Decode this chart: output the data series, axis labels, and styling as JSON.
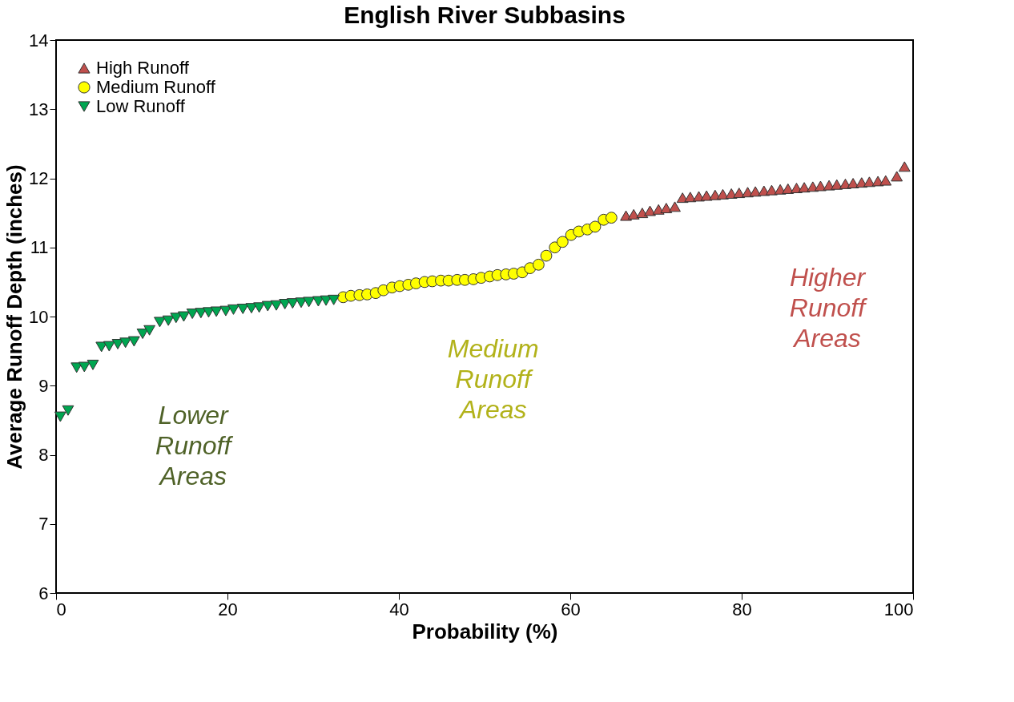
{
  "chart_data": {
    "type": "scatter",
    "title": "English River Subbasins",
    "xlabel": "Probability (%)",
    "ylabel": "Average Runoff Depth (inches)",
    "xlim": [
      0,
      100
    ],
    "xticks": [
      0,
      20,
      40,
      60,
      80,
      100
    ],
    "ylim": [
      6,
      14
    ],
    "yticks": [
      6,
      7,
      8,
      9,
      10,
      11,
      12,
      13,
      14
    ],
    "grid": false,
    "legend": "top left",
    "series": [
      {
        "name": "High Runoff",
        "color": "#c0504d",
        "marker": "triangle",
        "x": [
          66.5,
          67.4,
          68.4,
          69.3,
          70.3,
          71.2,
          72.2,
          73.1,
          74,
          75,
          75.9,
          76.9,
          77.8,
          78.8,
          79.7,
          80.7,
          81.6,
          82.6,
          83.5,
          84.5,
          85.4,
          86.4,
          87.3,
          88.3,
          89.2,
          90.2,
          91.1,
          92.1,
          93,
          94,
          94.9,
          95.9,
          96.8,
          98.1,
          99
        ],
        "values": [
          11.46,
          11.48,
          11.5,
          11.53,
          11.55,
          11.57,
          11.59,
          11.72,
          11.73,
          11.74,
          11.75,
          11.76,
          11.77,
          11.78,
          11.79,
          11.8,
          11.81,
          11.82,
          11.83,
          11.84,
          11.85,
          11.86,
          11.87,
          11.88,
          11.89,
          11.9,
          11.91,
          11.92,
          11.93,
          11.94,
          11.95,
          11.96,
          11.97,
          12.03,
          12.17
        ]
      },
      {
        "name": "Medium Runoff",
        "color": "#ffff00",
        "marker": "circle",
        "x": [
          33.5,
          34.4,
          35.4,
          36.3,
          37.3,
          38.2,
          39.2,
          40.1,
          41.1,
          42,
          43,
          43.9,
          44.9,
          45.8,
          46.8,
          47.7,
          48.7,
          49.6,
          50.6,
          51.5,
          52.5,
          53.4,
          54.4,
          55.3,
          56.3,
          57.2,
          58.2,
          59.1,
          60.1,
          61,
          62,
          62.9,
          63.9,
          64.8
        ],
        "values": [
          10.28,
          10.3,
          10.31,
          10.32,
          10.34,
          10.38,
          10.42,
          10.44,
          10.46,
          10.48,
          10.5,
          10.51,
          10.52,
          10.52,
          10.53,
          10.53,
          10.54,
          10.56,
          10.58,
          10.6,
          10.61,
          10.62,
          10.64,
          10.7,
          10.75,
          10.88,
          11.0,
          11.08,
          11.18,
          11.23,
          11.26,
          11.3,
          11.4,
          11.43
        ]
      },
      {
        "name": "Low Runoff",
        "color": "#00a651",
        "marker": "triangle-down",
        "x": [
          0.5,
          1.4,
          2.4,
          3.3,
          4.3,
          5.3,
          6.2,
          7.2,
          8.1,
          9.1,
          10.1,
          10.9,
          12.1,
          13.1,
          14,
          14.9,
          15.9,
          16.9,
          17.8,
          18.7,
          19.8,
          20.7,
          21.8,
          22.8,
          23.7,
          24.7,
          25.7,
          26.7,
          27.6,
          28.6,
          29.5,
          30.6,
          31.5,
          32.4
        ],
        "values": [
          8.55,
          8.64,
          9.26,
          9.27,
          9.3,
          9.56,
          9.57,
          9.6,
          9.62,
          9.64,
          9.75,
          9.8,
          9.92,
          9.94,
          9.98,
          10.0,
          10.04,
          10.05,
          10.06,
          10.07,
          10.08,
          10.1,
          10.11,
          10.12,
          10.13,
          10.15,
          10.16,
          10.18,
          10.19,
          10.2,
          10.21,
          10.22,
          10.23,
          10.24
        ]
      }
    ],
    "annotations": [
      "Lower\nRunoff\nAreas",
      "Medium\nRunoff\nAreas",
      "Higher\nRunoff\nAreas"
    ]
  }
}
